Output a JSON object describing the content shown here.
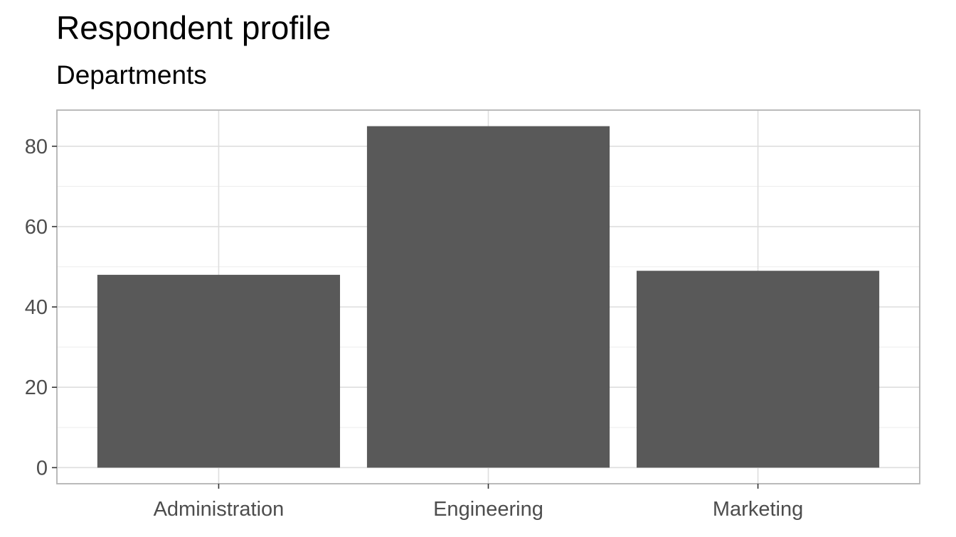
{
  "chart_data": {
    "type": "bar",
    "title": "Respondent profile",
    "subtitle": "Departments",
    "categories": [
      "Administration",
      "Engineering",
      "Marketing"
    ],
    "values": [
      48,
      85,
      49
    ],
    "xlabel": "",
    "ylabel": "",
    "ylim": [
      0,
      89
    ],
    "yticks": [
      0,
      20,
      40,
      60,
      80
    ],
    "grid": true,
    "legend": "none",
    "colors": {
      "bar": "#595959",
      "panel_border": "#b3b3b3",
      "grid_major": "#dedede",
      "grid_minor": "#efefef",
      "tick_text": "#4d4d4d"
    }
  }
}
